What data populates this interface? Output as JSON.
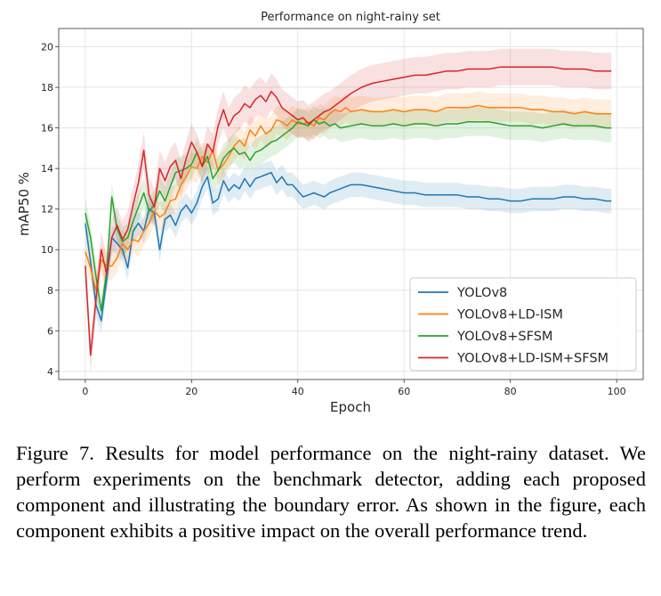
{
  "chart_data": {
    "type": "line",
    "title": "Performance on night-rainy set",
    "xlabel": "Epoch",
    "ylabel": "mAP50 %",
    "xlim": [
      -5,
      105
    ],
    "ylim": [
      3.6,
      20.9
    ],
    "xticks": [
      0,
      20,
      40,
      60,
      80,
      100
    ],
    "yticks": [
      4,
      6,
      8,
      10,
      12,
      14,
      16,
      18,
      20
    ],
    "grid": true,
    "legend_position": "lower-right",
    "band_note": "shaded variance band around each line",
    "series": [
      {
        "name": "YOLOv8",
        "color": "#1f77b4",
        "band": 0.6,
        "points": [
          [
            0,
            11.3
          ],
          [
            1,
            9.4
          ],
          [
            2,
            7.3
          ],
          [
            3,
            6.5
          ],
          [
            4,
            8.5
          ],
          [
            5,
            10.6
          ],
          [
            6,
            10.3
          ],
          [
            7,
            10.0
          ],
          [
            8,
            9.1
          ],
          [
            9,
            10.9
          ],
          [
            10,
            11.3
          ],
          [
            11,
            10.9
          ],
          [
            12,
            12.0
          ],
          [
            13,
            11.8
          ],
          [
            14,
            10.0
          ],
          [
            15,
            11.5
          ],
          [
            16,
            11.7
          ],
          [
            17,
            11.2
          ],
          [
            18,
            11.9
          ],
          [
            19,
            12.2
          ],
          [
            20,
            11.8
          ],
          [
            21,
            12.3
          ],
          [
            22,
            13.1
          ],
          [
            23,
            13.6
          ],
          [
            24,
            12.3
          ],
          [
            25,
            12.5
          ],
          [
            26,
            13.4
          ],
          [
            27,
            12.9
          ],
          [
            28,
            13.2
          ],
          [
            29,
            13.0
          ],
          [
            30,
            13.5
          ],
          [
            31,
            13.1
          ],
          [
            32,
            13.5
          ],
          [
            33,
            13.6
          ],
          [
            34,
            13.7
          ],
          [
            35,
            13.8
          ],
          [
            36,
            13.3
          ],
          [
            37,
            13.6
          ],
          [
            38,
            13.2
          ],
          [
            39,
            13.2
          ],
          [
            40,
            12.9
          ],
          [
            41,
            12.6
          ],
          [
            42,
            12.7
          ],
          [
            43,
            12.8
          ],
          [
            44,
            12.7
          ],
          [
            45,
            12.6
          ],
          [
            46,
            12.8
          ],
          [
            47,
            12.9
          ],
          [
            48,
            13.0
          ],
          [
            49,
            13.1
          ],
          [
            50,
            13.2
          ],
          [
            52,
            13.2
          ],
          [
            54,
            13.1
          ],
          [
            56,
            13.0
          ],
          [
            58,
            12.9
          ],
          [
            60,
            12.8
          ],
          [
            62,
            12.8
          ],
          [
            64,
            12.7
          ],
          [
            66,
            12.7
          ],
          [
            68,
            12.7
          ],
          [
            70,
            12.7
          ],
          [
            72,
            12.6
          ],
          [
            74,
            12.6
          ],
          [
            76,
            12.5
          ],
          [
            78,
            12.5
          ],
          [
            80,
            12.4
          ],
          [
            82,
            12.4
          ],
          [
            84,
            12.5
          ],
          [
            86,
            12.5
          ],
          [
            88,
            12.5
          ],
          [
            90,
            12.6
          ],
          [
            92,
            12.6
          ],
          [
            94,
            12.5
          ],
          [
            96,
            12.5
          ],
          [
            98,
            12.4
          ],
          [
            99,
            12.4
          ]
        ]
      },
      {
        "name": "YOLOv8+LD-ISM",
        "color": "#ff7f0e",
        "band": 0.7,
        "points": [
          [
            0,
            9.9
          ],
          [
            1,
            9.1
          ],
          [
            2,
            8.0
          ],
          [
            3,
            9.5
          ],
          [
            4,
            9.2
          ],
          [
            5,
            9.2
          ],
          [
            6,
            9.6
          ],
          [
            7,
            10.3
          ],
          [
            8,
            10.0
          ],
          [
            9,
            10.5
          ],
          [
            10,
            10.4
          ],
          [
            11,
            10.9
          ],
          [
            12,
            11.3
          ],
          [
            13,
            11.9
          ],
          [
            14,
            11.6
          ],
          [
            15,
            11.8
          ],
          [
            16,
            12.4
          ],
          [
            17,
            12.5
          ],
          [
            18,
            13.2
          ],
          [
            19,
            13.6
          ],
          [
            20,
            14.1
          ],
          [
            21,
            14.0
          ],
          [
            22,
            14.6
          ],
          [
            23,
            14.3
          ],
          [
            24,
            14.9
          ],
          [
            25,
            13.9
          ],
          [
            26,
            14.2
          ],
          [
            27,
            14.6
          ],
          [
            28,
            15.1
          ],
          [
            29,
            15.4
          ],
          [
            30,
            15.1
          ],
          [
            31,
            15.9
          ],
          [
            32,
            15.6
          ],
          [
            33,
            16.1
          ],
          [
            34,
            15.7
          ],
          [
            35,
            15.9
          ],
          [
            36,
            16.4
          ],
          [
            37,
            16.3
          ],
          [
            38,
            16.1
          ],
          [
            39,
            16.4
          ],
          [
            40,
            16.2
          ],
          [
            41,
            16.2
          ],
          [
            42,
            16.3
          ],
          [
            43,
            16.1
          ],
          [
            44,
            16.5
          ],
          [
            45,
            16.4
          ],
          [
            46,
            16.7
          ],
          [
            47,
            16.9
          ],
          [
            48,
            16.8
          ],
          [
            49,
            17.0
          ],
          [
            50,
            16.8
          ],
          [
            52,
            16.9
          ],
          [
            54,
            16.8
          ],
          [
            56,
            16.8
          ],
          [
            58,
            16.9
          ],
          [
            60,
            16.8
          ],
          [
            62,
            16.9
          ],
          [
            64,
            16.9
          ],
          [
            66,
            16.8
          ],
          [
            68,
            17.0
          ],
          [
            70,
            17.0
          ],
          [
            72,
            17.0
          ],
          [
            74,
            17.1
          ],
          [
            76,
            17.0
          ],
          [
            78,
            17.0
          ],
          [
            80,
            17.0
          ],
          [
            82,
            17.0
          ],
          [
            84,
            16.9
          ],
          [
            86,
            16.9
          ],
          [
            88,
            16.8
          ],
          [
            90,
            16.8
          ],
          [
            92,
            16.7
          ],
          [
            94,
            16.8
          ],
          [
            96,
            16.7
          ],
          [
            98,
            16.7
          ],
          [
            99,
            16.7
          ]
        ]
      },
      {
        "name": "YOLOv8+SFSM",
        "color": "#2ca02c",
        "band": 0.7,
        "points": [
          [
            0,
            11.8
          ],
          [
            1,
            10.6
          ],
          [
            2,
            8.7
          ],
          [
            3,
            7.0
          ],
          [
            4,
            8.9
          ],
          [
            5,
            12.6
          ],
          [
            6,
            11.0
          ],
          [
            7,
            10.4
          ],
          [
            8,
            10.6
          ],
          [
            9,
            11.4
          ],
          [
            10,
            12.1
          ],
          [
            11,
            12.8
          ],
          [
            12,
            11.9
          ],
          [
            13,
            12.2
          ],
          [
            14,
            12.9
          ],
          [
            15,
            12.4
          ],
          [
            16,
            13.1
          ],
          [
            17,
            13.8
          ],
          [
            18,
            13.9
          ],
          [
            19,
            14.0
          ],
          [
            20,
            14.2
          ],
          [
            21,
            14.8
          ],
          [
            22,
            14.1
          ],
          [
            23,
            14.6
          ],
          [
            24,
            13.5
          ],
          [
            25,
            13.9
          ],
          [
            26,
            14.5
          ],
          [
            27,
            14.8
          ],
          [
            28,
            15.0
          ],
          [
            29,
            14.7
          ],
          [
            30,
            14.8
          ],
          [
            31,
            14.4
          ],
          [
            32,
            14.8
          ],
          [
            33,
            14.9
          ],
          [
            34,
            15.1
          ],
          [
            35,
            15.3
          ],
          [
            36,
            15.4
          ],
          [
            37,
            15.6
          ],
          [
            38,
            15.8
          ],
          [
            39,
            16.0
          ],
          [
            40,
            16.3
          ],
          [
            41,
            16.2
          ],
          [
            42,
            16.1
          ],
          [
            43,
            16.4
          ],
          [
            44,
            16.2
          ],
          [
            45,
            16.3
          ],
          [
            46,
            16.1
          ],
          [
            47,
            16.2
          ],
          [
            48,
            16.0
          ],
          [
            50,
            16.1
          ],
          [
            52,
            16.2
          ],
          [
            54,
            16.1
          ],
          [
            56,
            16.1
          ],
          [
            58,
            16.2
          ],
          [
            60,
            16.1
          ],
          [
            62,
            16.2
          ],
          [
            64,
            16.2
          ],
          [
            66,
            16.1
          ],
          [
            68,
            16.2
          ],
          [
            70,
            16.2
          ],
          [
            72,
            16.3
          ],
          [
            74,
            16.3
          ],
          [
            76,
            16.3
          ],
          [
            78,
            16.2
          ],
          [
            80,
            16.1
          ],
          [
            82,
            16.1
          ],
          [
            84,
            16.1
          ],
          [
            86,
            16.0
          ],
          [
            88,
            16.1
          ],
          [
            90,
            16.2
          ],
          [
            92,
            16.1
          ],
          [
            94,
            16.1
          ],
          [
            96,
            16.1
          ],
          [
            98,
            16.0
          ],
          [
            99,
            16.0
          ]
        ]
      },
      {
        "name": "YOLOv8+LD-ISM+SFSM",
        "color": "#d62728",
        "band": 0.9,
        "points": [
          [
            0,
            9.2
          ],
          [
            1,
            4.8
          ],
          [
            2,
            7.5
          ],
          [
            3,
            10.0
          ],
          [
            4,
            8.8
          ],
          [
            5,
            10.6
          ],
          [
            6,
            11.2
          ],
          [
            7,
            10.5
          ],
          [
            8,
            11.0
          ],
          [
            9,
            12.2
          ],
          [
            10,
            13.3
          ],
          [
            11,
            14.9
          ],
          [
            12,
            12.7
          ],
          [
            13,
            12.1
          ],
          [
            14,
            14.0
          ],
          [
            15,
            13.4
          ],
          [
            16,
            14.1
          ],
          [
            17,
            14.4
          ],
          [
            18,
            13.5
          ],
          [
            19,
            14.5
          ],
          [
            20,
            15.3
          ],
          [
            21,
            14.8
          ],
          [
            22,
            14.1
          ],
          [
            23,
            15.2
          ],
          [
            24,
            14.8
          ],
          [
            25,
            16.1
          ],
          [
            26,
            16.9
          ],
          [
            27,
            16.1
          ],
          [
            28,
            16.6
          ],
          [
            29,
            16.8
          ],
          [
            30,
            17.2
          ],
          [
            31,
            17.0
          ],
          [
            32,
            17.4
          ],
          [
            33,
            17.6
          ],
          [
            34,
            17.3
          ],
          [
            35,
            17.8
          ],
          [
            36,
            17.5
          ],
          [
            37,
            17.0
          ],
          [
            38,
            16.8
          ],
          [
            39,
            16.6
          ],
          [
            40,
            16.4
          ],
          [
            41,
            16.5
          ],
          [
            42,
            16.2
          ],
          [
            43,
            16.4
          ],
          [
            44,
            16.6
          ],
          [
            45,
            16.8
          ],
          [
            46,
            16.9
          ],
          [
            47,
            17.1
          ],
          [
            48,
            17.3
          ],
          [
            49,
            17.5
          ],
          [
            50,
            17.7
          ],
          [
            52,
            18.0
          ],
          [
            54,
            18.2
          ],
          [
            56,
            18.3
          ],
          [
            58,
            18.4
          ],
          [
            60,
            18.5
          ],
          [
            62,
            18.6
          ],
          [
            64,
            18.6
          ],
          [
            66,
            18.7
          ],
          [
            68,
            18.8
          ],
          [
            70,
            18.8
          ],
          [
            72,
            18.9
          ],
          [
            74,
            18.9
          ],
          [
            76,
            18.9
          ],
          [
            78,
            19.0
          ],
          [
            80,
            19.0
          ],
          [
            82,
            19.0
          ],
          [
            84,
            19.0
          ],
          [
            86,
            19.0
          ],
          [
            88,
            19.0
          ],
          [
            90,
            18.9
          ],
          [
            92,
            18.9
          ],
          [
            94,
            18.9
          ],
          [
            96,
            18.8
          ],
          [
            98,
            18.8
          ],
          [
            99,
            18.8
          ]
        ]
      }
    ]
  },
  "caption": {
    "text": "Figure 7.   Results for model performance on the night-rainy dataset.  We perform experiments on the benchmark detector, adding each proposed component and illustrating the boundary error.  As shown in the figure, each component exhibits a positive impact on the overall performance trend."
  }
}
